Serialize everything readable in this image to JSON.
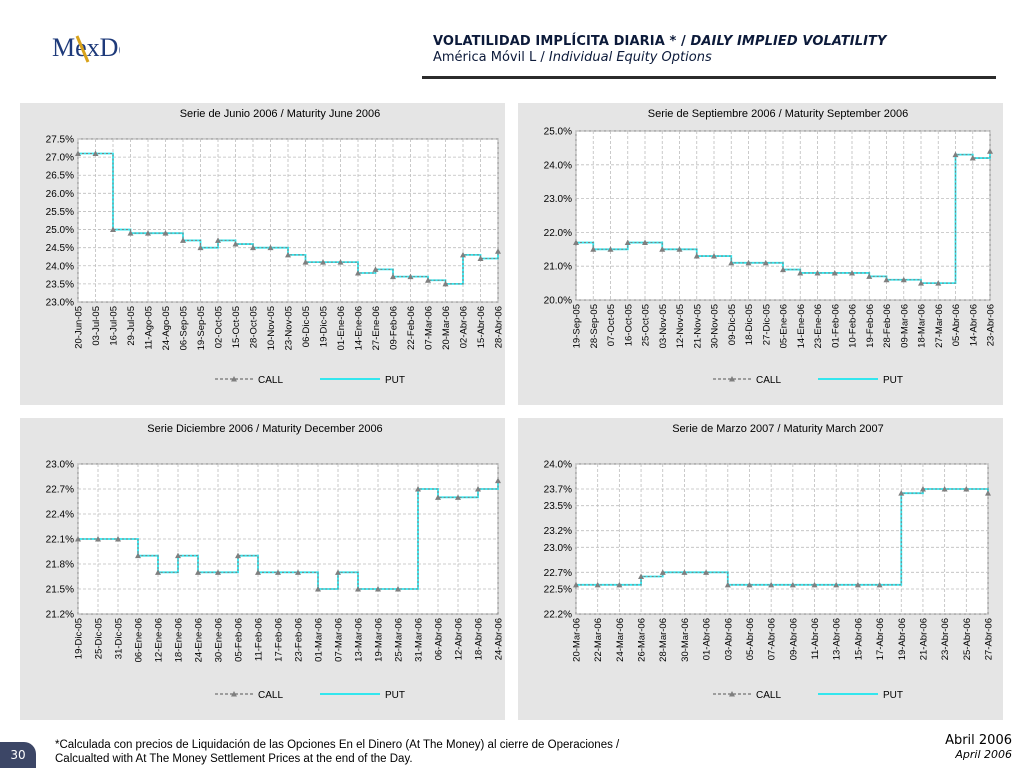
{
  "header": {
    "logo_text": "MexDer",
    "title_bold": "VOLATILIDAD IMPLÍCITA DIARIA * /",
    "title_italic": "DAILY IMPLIED VOLATILITY",
    "subtitle_plain": "América Móvil L /",
    "subtitle_italic": "Individual Equity Options"
  },
  "footer": {
    "note_line1": "*Calculada con precios de Liquidación de las Opciones En el Dinero (At The Money) al cierre de Operaciones /",
    "note_line2": "Calcualted with At The Money Settlement Prices at the end of the Day.",
    "date_es": "Abril 2006",
    "date_en": "April 2006",
    "page_number": "30"
  },
  "colors": {
    "call": "#7f7f7f",
    "put": "#33e6ee",
    "panel_bg": "#e5e5e5",
    "header_text": "#0c1a3a"
  },
  "chart_data": [
    {
      "type": "line",
      "title": "Serie de Junio 2006 / Maturity June 2006",
      "ylim": [
        23.0,
        27.5
      ],
      "yticks": [
        23.0,
        23.5,
        24.0,
        24.5,
        25.0,
        25.5,
        26.0,
        26.5,
        27.0,
        27.5
      ],
      "ytick_labels": [
        "23.0%",
        "23.5%",
        "24.0%",
        "24.5%",
        "25.0%",
        "25.5%",
        "26.0%",
        "26.5%",
        "27.0%",
        "27.5%"
      ],
      "categories": [
        "20-Jun-05",
        "03-Jul-05",
        "16-Jul-05",
        "29-Jul-05",
        "11-Ago-05",
        "24-Ago-05",
        "06-Sep-05",
        "19-Sep-05",
        "02-Oct-05",
        "15-Oct-05",
        "28-Oct-05",
        "10-Nov-05",
        "23-Nov-05",
        "06-Dic-05",
        "19-Dic-05",
        "01-Ene-06",
        "14-Ene-06",
        "27-Ene-06",
        "09-Feb-06",
        "22-Feb-06",
        "07-Mar-06",
        "20-Mar-06",
        "02-Abr-06",
        "15-Abr-06",
        "28-Abr-06"
      ],
      "series": [
        {
          "name": "CALL",
          "values": [
            27.1,
            27.1,
            25.0,
            24.9,
            24.9,
            24.9,
            24.7,
            24.5,
            24.7,
            24.6,
            24.5,
            24.5,
            24.3,
            24.1,
            24.1,
            24.1,
            23.8,
            23.9,
            23.7,
            23.7,
            23.6,
            23.5,
            24.3,
            24.2,
            24.4
          ]
        },
        {
          "name": "PUT",
          "values": [
            27.1,
            27.1,
            25.0,
            24.9,
            24.9,
            24.9,
            24.7,
            24.5,
            24.7,
            24.6,
            24.5,
            24.5,
            24.3,
            24.1,
            24.1,
            24.1,
            23.8,
            23.9,
            23.7,
            23.7,
            23.6,
            23.5,
            24.3,
            24.2,
            24.4
          ]
        }
      ]
    },
    {
      "type": "line",
      "title": "Serie de Septiembre 2006 / Maturity September 2006",
      "ylim": [
        20.0,
        25.0
      ],
      "yticks": [
        20.0,
        21.0,
        22.0,
        23.0,
        24.0,
        25.0
      ],
      "ytick_labels": [
        "20.0%",
        "21.0%",
        "22.0%",
        "23.0%",
        "24.0%",
        "25.0%"
      ],
      "categories": [
        "19-Sep-05",
        "28-Sep-05",
        "07-Oct-05",
        "16-Oct-05",
        "25-Oct-05",
        "03-Nov-05",
        "12-Nov-05",
        "21-Nov-05",
        "30-Nov-05",
        "09-Dic-05",
        "18-Dic-05",
        "27-Dic-05",
        "05-Ene-06",
        "14-Ene-06",
        "23-Ene-06",
        "01-Feb-06",
        "10-Feb-06",
        "19-Feb-06",
        "28-Feb-06",
        "09-Mar-06",
        "18-Mar-06",
        "27-Mar-06",
        "05-Abr-06",
        "14-Abr-06",
        "23-Abr-06"
      ],
      "series": [
        {
          "name": "CALL",
          "values": [
            21.7,
            21.5,
            21.5,
            21.7,
            21.7,
            21.5,
            21.5,
            21.3,
            21.3,
            21.1,
            21.1,
            21.1,
            20.9,
            20.8,
            20.8,
            20.8,
            20.8,
            20.7,
            20.6,
            20.6,
            20.5,
            20.5,
            24.3,
            24.2,
            24.4
          ]
        },
        {
          "name": "PUT",
          "values": [
            21.7,
            21.5,
            21.5,
            21.7,
            21.7,
            21.5,
            21.5,
            21.3,
            21.3,
            21.1,
            21.1,
            21.1,
            20.9,
            20.8,
            20.8,
            20.8,
            20.8,
            20.7,
            20.6,
            20.6,
            20.5,
            20.5,
            24.3,
            24.2,
            24.4
          ]
        }
      ]
    },
    {
      "type": "line",
      "title": "Serie Diciembre 2006 / Maturity December 2006",
      "ylim": [
        21.2,
        23.0
      ],
      "yticks": [
        21.2,
        21.5,
        21.8,
        22.1,
        22.4,
        22.7,
        23.0
      ],
      "ytick_labels": [
        "21.2%",
        "21.5%",
        "21.8%",
        "22.1%",
        "22.4%",
        "22.7%",
        "23.0%"
      ],
      "categories": [
        "19-Dic-05",
        "25-Dic-05",
        "31-Dic-05",
        "06-Ene-06",
        "12-Ene-06",
        "18-Ene-06",
        "24-Ene-06",
        "30-Ene-06",
        "05-Feb-06",
        "11-Feb-06",
        "17-Feb-06",
        "23-Feb-06",
        "01-Mar-06",
        "07-Mar-06",
        "13-Mar-06",
        "19-Mar-06",
        "25-Mar-06",
        "31-Mar-06",
        "06-Abr-06",
        "12-Abr-06",
        "18-Abr-06",
        "24-Abr-06"
      ],
      "series": [
        {
          "name": "CALL",
          "values": [
            22.1,
            22.1,
            22.1,
            21.9,
            21.7,
            21.9,
            21.7,
            21.7,
            21.9,
            21.7,
            21.7,
            21.7,
            21.5,
            21.7,
            21.5,
            21.5,
            21.5,
            22.7,
            22.6,
            22.6,
            22.7,
            22.8
          ]
        },
        {
          "name": "PUT",
          "values": [
            22.1,
            22.1,
            22.1,
            21.9,
            21.7,
            21.9,
            21.7,
            21.7,
            21.9,
            21.7,
            21.7,
            21.7,
            21.5,
            21.7,
            21.5,
            21.5,
            21.5,
            22.7,
            22.6,
            22.6,
            22.7,
            22.8
          ]
        }
      ]
    },
    {
      "type": "line",
      "title": "Serie de Marzo 2007 / Maturity March 2007",
      "ylim": [
        22.2,
        24.0
      ],
      "yticks": [
        22.2,
        22.5,
        22.7,
        23.0,
        23.2,
        23.5,
        23.7,
        24.0
      ],
      "ytick_labels": [
        "22.2%",
        "22.5%",
        "22.7%",
        "23.0%",
        "23.2%",
        "23.5%",
        "23.7%",
        "24.0%"
      ],
      "categories": [
        "20-Mar-06",
        "22-Mar-06",
        "24-Mar-06",
        "26-Mar-06",
        "28-Mar-06",
        "30-Mar-06",
        "01-Abr-06",
        "03-Abr-06",
        "05-Abr-06",
        "07-Abr-06",
        "09-Abr-06",
        "11-Abr-06",
        "13-Abr-06",
        "15-Abr-06",
        "17-Abr-06",
        "19-Abr-06",
        "21-Abr-06",
        "23-Abr-06",
        "25-Abr-06",
        "27-Abr-06"
      ],
      "series": [
        {
          "name": "CALL",
          "values": [
            22.55,
            22.55,
            22.55,
            22.65,
            22.7,
            22.7,
            22.7,
            22.55,
            22.55,
            22.55,
            22.55,
            22.55,
            22.55,
            22.55,
            22.55,
            23.65,
            23.7,
            23.7,
            23.7,
            23.65
          ]
        },
        {
          "name": "PUT",
          "values": [
            22.55,
            22.55,
            22.55,
            22.65,
            22.7,
            22.7,
            22.7,
            22.55,
            22.55,
            22.55,
            22.55,
            22.55,
            22.55,
            22.55,
            22.55,
            23.65,
            23.7,
            23.7,
            23.7,
            23.65
          ]
        }
      ]
    }
  ]
}
